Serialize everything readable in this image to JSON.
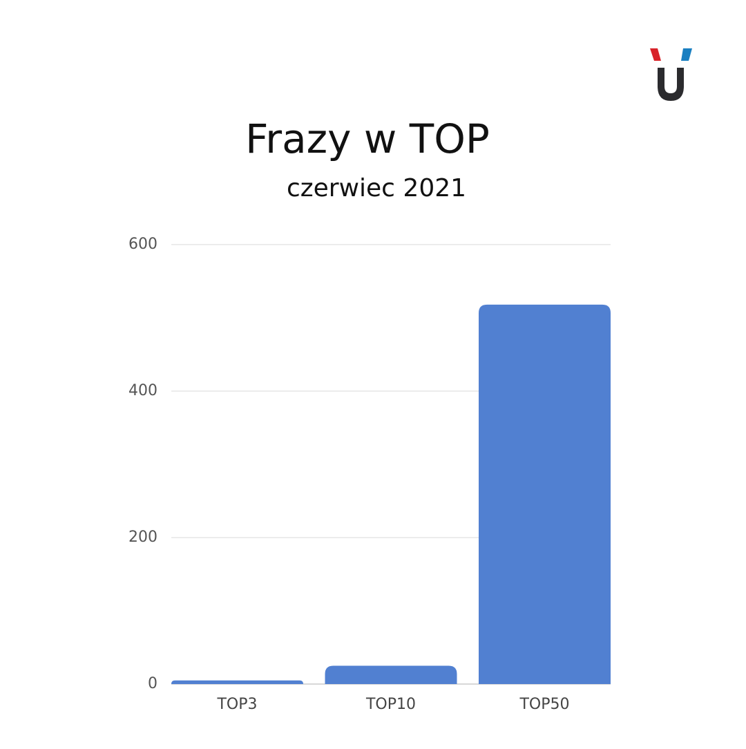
{
  "chart_data": {
    "type": "bar",
    "title": "Frazy w TOP",
    "subtitle": "czerwiec 2021",
    "categories": [
      "TOP3",
      "TOP10",
      "TOP50"
    ],
    "values": [
      5,
      25,
      518
    ],
    "color": "#5180d1",
    "ylim": [
      0,
      600
    ],
    "yticks": [
      0,
      200,
      400,
      600
    ],
    "grid": true
  }
}
